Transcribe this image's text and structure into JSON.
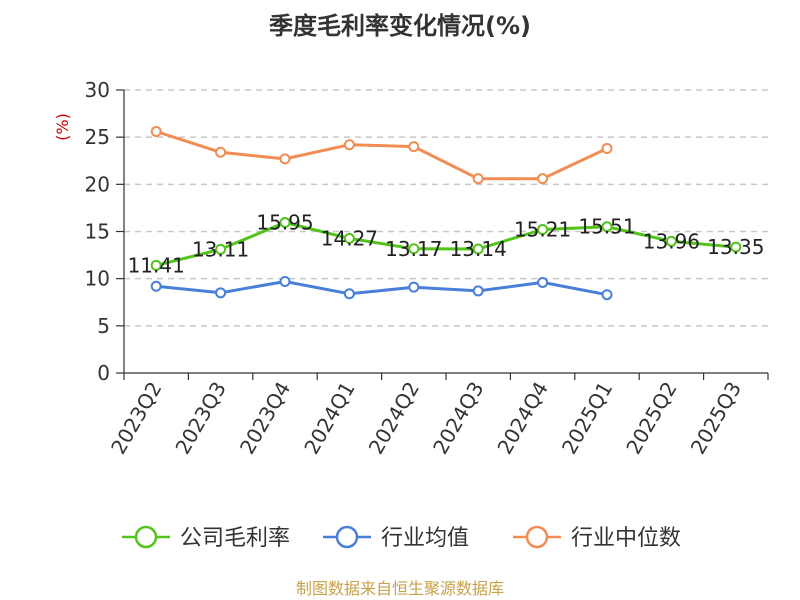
{
  "chart_data": {
    "type": "line",
    "title": "季度毛利率变化情况(%)",
    "unit_label": "(%)",
    "categories": [
      "2023Q2",
      "2023Q3",
      "2023Q4",
      "2024Q1",
      "2024Q2",
      "2024Q3",
      "2024Q4",
      "2025Q1",
      "2025Q2",
      "2025Q3"
    ],
    "ylim": [
      0,
      30
    ],
    "yticks": [
      0,
      5,
      10,
      15,
      20,
      25,
      30
    ],
    "grid": true,
    "legend_position": "bottom",
    "series": [
      {
        "name": "公司毛利率",
        "color": "#52c41a",
        "values": [
          11.41,
          13.11,
          15.95,
          14.27,
          13.17,
          13.14,
          15.21,
          15.51,
          13.96,
          13.35
        ],
        "labels": [
          "11.41",
          "13.11",
          "15.95",
          "14.27",
          "13.17",
          "13.14",
          "15.21",
          "15.51",
          "13.96",
          "13.35"
        ]
      },
      {
        "name": "行业均值",
        "color": "#4a7fd9",
        "values": [
          9.2,
          8.5,
          9.7,
          8.4,
          9.1,
          8.7,
          9.6,
          8.3,
          null,
          null
        ]
      },
      {
        "name": "行业中位数",
        "color": "#f28c52",
        "values": [
          25.6,
          23.4,
          22.7,
          24.2,
          24.0,
          20.6,
          20.6,
          23.8,
          null,
          null
        ]
      }
    ]
  },
  "source_text": "制图数据来自恒生聚源数据库"
}
